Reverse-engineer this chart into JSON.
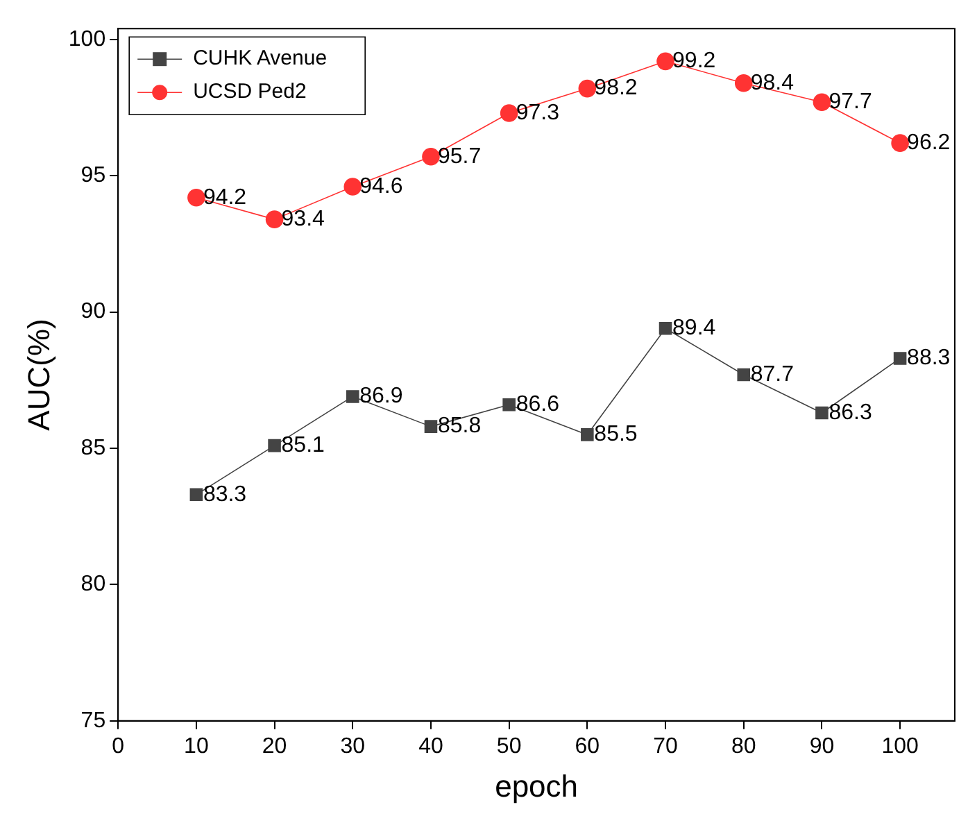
{
  "chart_data": {
    "type": "line",
    "xlabel": "epoch",
    "ylabel": "AUC(%)",
    "x": [
      10,
      20,
      30,
      40,
      50,
      60,
      70,
      80,
      90,
      100
    ],
    "series": [
      {
        "name": "CUHK Avenue",
        "color": "#444444",
        "marker": "square",
        "values": [
          83.3,
          85.1,
          86.9,
          85.8,
          86.6,
          85.5,
          89.4,
          87.7,
          86.3,
          88.3
        ]
      },
      {
        "name": "UCSD Ped2",
        "color": "#ff3333",
        "marker": "circle",
        "values": [
          94.2,
          93.4,
          94.6,
          95.7,
          97.3,
          98.2,
          99.2,
          98.4,
          97.7,
          96.2
        ]
      }
    ],
    "xlim": [
      0,
      107
    ],
    "xticks": [
      0,
      10,
      20,
      30,
      40,
      50,
      60,
      70,
      80,
      90,
      100
    ],
    "ylim": [
      75,
      100.4
    ],
    "yticks": [
      75,
      80,
      85,
      90,
      95,
      100
    ],
    "grid": false,
    "legend": "top left",
    "data_labels": true
  }
}
